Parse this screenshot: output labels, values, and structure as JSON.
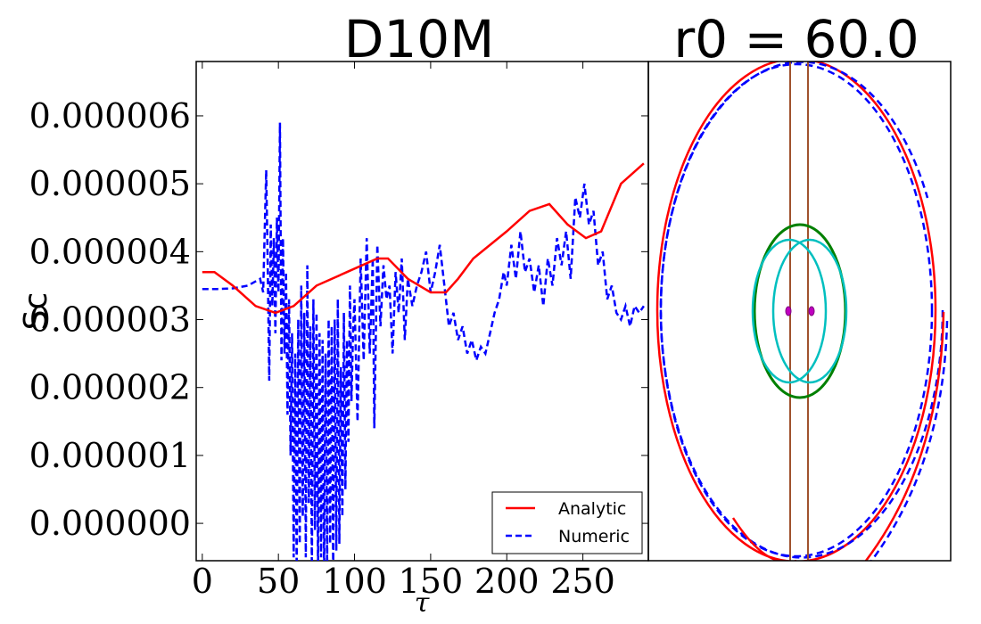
{
  "chart_data": [
    {
      "type": "line",
      "title": "D10M",
      "xlabel": "τ",
      "ylabel": "Sc",
      "xlim": [
        -4,
        293
      ],
      "ylim": [
        -5.5e-07,
        6.8e-06
      ],
      "xticks": [
        "0",
        "50",
        "100",
        "150",
        "200",
        "250"
      ],
      "xtick_values": [
        0,
        50,
        100,
        150,
        200,
        250
      ],
      "yticks": [
        "0.000000",
        "0.000001",
        "0.000002",
        "0.000003",
        "0.000004",
        "0.000005",
        "0.000006"
      ],
      "ytick_values": [
        0,
        1e-06,
        2e-06,
        3e-06,
        4e-06,
        5e-06,
        6e-06
      ],
      "legend_position": "lower-right",
      "series": [
        {
          "name": "Analytic",
          "color": "#ff0000",
          "style": "solid",
          "x": [
            0,
            8,
            20,
            35,
            48,
            60,
            75,
            95,
            115,
            122,
            135,
            150,
            160,
            168,
            178,
            200,
            215,
            228,
            240,
            252,
            262,
            275,
            290
          ],
          "y": [
            3.7e-06,
            3.7e-06,
            3.5e-06,
            3.2e-06,
            3.1e-06,
            3.2e-06,
            3.5e-06,
            3.7e-06,
            3.9e-06,
            3.9e-06,
            3.6e-06,
            3.4e-06,
            3.4e-06,
            3.6e-06,
            3.9e-06,
            4.3e-06,
            4.6e-06,
            4.7e-06,
            4.4e-06,
            4.2e-06,
            4.3e-06,
            5e-06,
            5.3e-06
          ]
        },
        {
          "name": "Numeric",
          "color": "#0000ff",
          "style": "dashed",
          "x": [
            0,
            10,
            20,
            30,
            38,
            40,
            42,
            43,
            44,
            45,
            46,
            47,
            48,
            49,
            50,
            51,
            52,
            53,
            54,
            55,
            56,
            57,
            58,
            59,
            60,
            61,
            62,
            63,
            64,
            65,
            66,
            67,
            68,
            69,
            70,
            71,
            72,
            73,
            74,
            75,
            76,
            77,
            78,
            79,
            80,
            81,
            82,
            83,
            84,
            85,
            86,
            87,
            88,
            89,
            90,
            91,
            92,
            93,
            94,
            95,
            96,
            97,
            98,
            99,
            100,
            102,
            104,
            106,
            108,
            110,
            112,
            113,
            115,
            117,
            119,
            121,
            123,
            125,
            127,
            129,
            131,
            133,
            135,
            138,
            141,
            144,
            147,
            150,
            153,
            156,
            159,
            162,
            165,
            168,
            171,
            174,
            177,
            180,
            183,
            186,
            189,
            192,
            195,
            198,
            200,
            203,
            206,
            209,
            212,
            215,
            218,
            221,
            224,
            227,
            230,
            233,
            236,
            239,
            242,
            245,
            248,
            251,
            254,
            257,
            260,
            263,
            266,
            269,
            272,
            275,
            278,
            281,
            284,
            287,
            290
          ],
          "y": [
            3.45e-06,
            3.45e-06,
            3.46e-06,
            3.5e-06,
            3.6e-06,
            3.4e-06,
            5.2e-06,
            3.8e-06,
            2.1e-06,
            4.4e-06,
            3.2e-06,
            4.2e-06,
            2.8e-06,
            4.5e-06,
            3.4e-06,
            5.9e-06,
            2.4e-06,
            4.2e-06,
            2.5e-06,
            3.7e-06,
            1.6e-06,
            3.3e-06,
            1e-06,
            2.8e-06,
            -5e-07,
            2.5e-06,
            -7e-07,
            3e-06,
            -3e-07,
            3.5e-06,
            1e-07,
            3.1e-06,
            -5e-07,
            3.8e-06,
            3e-07,
            2.9e-06,
            -7e-07,
            3.3e-06,
            -1e-07,
            3.1e-06,
            -7e-07,
            2.8e-06,
            -5e-07,
            2.7e-06,
            -8e-07,
            2.5e-06,
            -6e-07,
            3e-06,
            -3e-07,
            2.9e-06,
            -7e-07,
            3e-06,
            -4e-07,
            3.3e-06,
            -3e-07,
            2.3e-06,
            1e-07,
            3.1e-06,
            5e-07,
            2.7e-06,
            1.2e-06,
            3.5e-06,
            1.8e-06,
            2.8e-06,
            3.3e-06,
            1.5e-06,
            3.9e-06,
            2.4e-06,
            4.2e-06,
            2.5e-06,
            3.9e-06,
            1.4e-06,
            4.1e-06,
            2.9e-06,
            3.8e-06,
            3.3e-06,
            3.5e-06,
            2.5e-06,
            3.7e-06,
            3.1e-06,
            3.9e-06,
            2.7e-06,
            3.6e-06,
            3.2e-06,
            3.5e-06,
            3.7e-06,
            4e-06,
            3.4e-06,
            3.7e-06,
            4.1e-06,
            3.5e-06,
            2.9e-06,
            3.1e-06,
            2.7e-06,
            2.9e-06,
            2.5e-06,
            2.7e-06,
            2.4e-06,
            2.6e-06,
            2.5e-06,
            2.8e-06,
            3.1e-06,
            3.3e-06,
            3.7e-06,
            3.5e-06,
            4.1e-06,
            3.6e-06,
            4.3e-06,
            3.7e-06,
            3.9e-06,
            3.4e-06,
            3.8e-06,
            3.2e-06,
            3.9e-06,
            3.5e-06,
            4.2e-06,
            3.8e-06,
            4.3e-06,
            3.6e-06,
            4.8e-06,
            4.5e-06,
            5e-06,
            4.4e-06,
            4.6e-06,
            3.8e-06,
            4e-06,
            3.3e-06,
            3.5e-06,
            3.1e-06,
            3e-06,
            3.2e-06,
            2.9e-06,
            3.2e-06,
            3.1e-06,
            3.2e-06
          ]
        }
      ]
    },
    {
      "type": "line",
      "title": "r0 = 60.0",
      "description_axes": "none",
      "series": [
        {
          "name": "",
          "color": "#ff0000",
          "style": "solid",
          "shape": "outer-ellipse"
        },
        {
          "name": "",
          "color": "#0000ff",
          "style": "dashed",
          "shape": "outer-ellipse"
        },
        {
          "name": "",
          "color": "#008000",
          "style": "solid",
          "shape": "middle-ellipse"
        },
        {
          "name": "",
          "color": "#00bfbf",
          "style": "solid",
          "shape": "inner-ellipse-pair"
        },
        {
          "name": "",
          "color": "#a0522d",
          "style": "solid",
          "shape": "vertical-lines"
        },
        {
          "name": "",
          "color": "#bf00bf",
          "style": "solid",
          "shape": "point-pair"
        }
      ]
    }
  ]
}
